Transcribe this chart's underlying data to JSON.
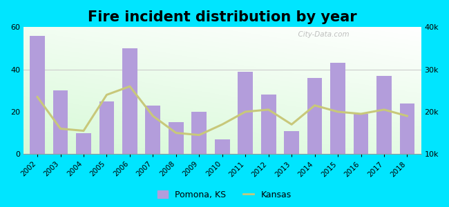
{
  "title": "Fire incident distribution by year",
  "years": [
    2002,
    2003,
    2004,
    2005,
    2006,
    2007,
    2008,
    2009,
    2010,
    2011,
    2012,
    2013,
    2014,
    2015,
    2016,
    2017,
    2018
  ],
  "pomona_values": [
    56,
    30,
    10,
    25,
    50,
    23,
    15,
    20,
    7,
    39,
    28,
    11,
    36,
    43,
    19,
    37,
    24
  ],
  "kansas_values": [
    23500,
    16000,
    15500,
    24000,
    26000,
    19000,
    15000,
    14500,
    17000,
    20000,
    20500,
    17000,
    21500,
    20000,
    19500,
    20500,
    19000
  ],
  "bar_color": "#b39ddb",
  "line_color": "#c8c87a",
  "outer_background": "#00e5ff",
  "left_ylim": [
    0,
    60
  ],
  "right_ylim": [
    10000,
    40000
  ],
  "left_yticks": [
    0,
    20,
    40,
    60
  ],
  "right_yticks": [
    10000,
    20000,
    30000,
    40000
  ],
  "right_yticklabels": [
    "10k",
    "20k",
    "30k",
    "40k"
  ],
  "watermark": "  City-Data.com",
  "legend_pomona": "Pomona, KS",
  "legend_kansas": "Kansas",
  "title_fontsize": 15
}
